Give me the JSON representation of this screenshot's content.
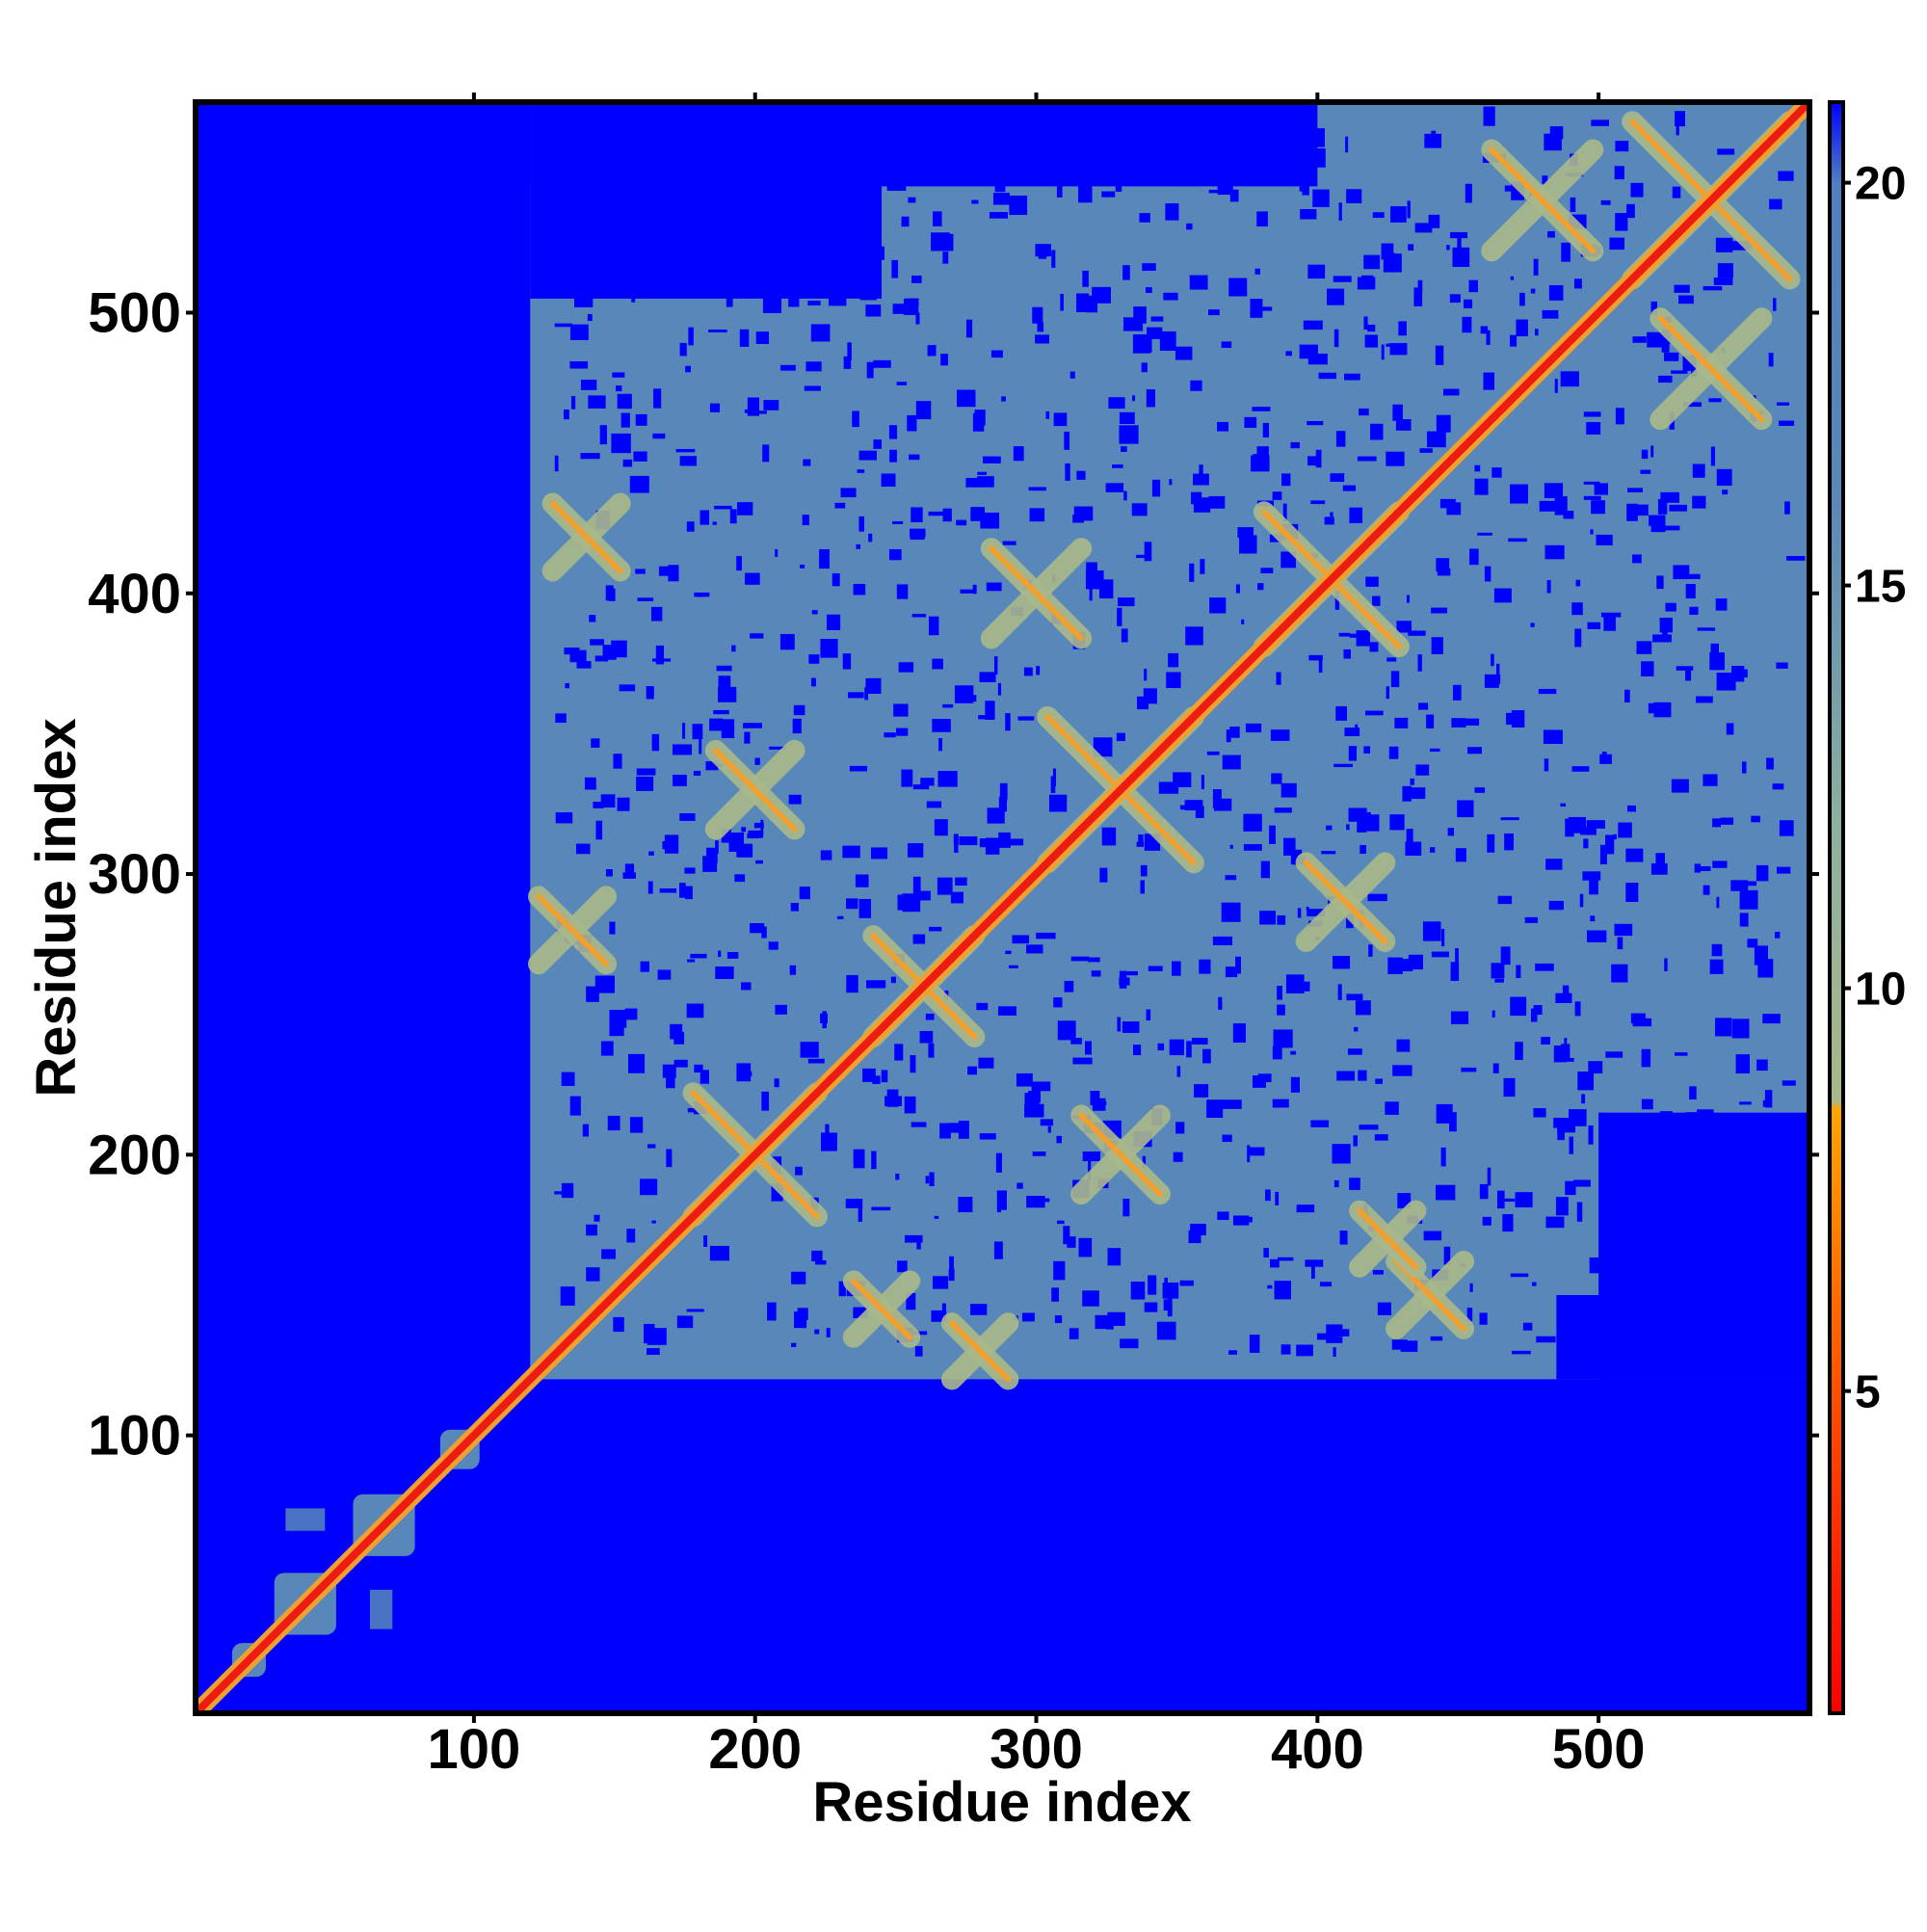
{
  "chart_data": {
    "type": "heatmap",
    "title": "",
    "xlabel": "Residue index",
    "ylabel": "Residue index",
    "xlim": [
      1,
      575
    ],
    "ylim": [
      1,
      575
    ],
    "x_ticks": [
      100,
      200,
      300,
      400,
      500
    ],
    "y_ticks": [
      100,
      200,
      300,
      400,
      500
    ],
    "value_range": [
      1,
      21
    ],
    "colorbar_ticks": [
      5,
      10,
      15,
      20
    ],
    "colors": {
      "background": "#0000ff",
      "region": "#5887b9",
      "contact_light": "#aab98a",
      "contact_mid": "#f0a030",
      "diagonal": "#ee1b10"
    },
    "colorbar_stops": [
      {
        "value": 1,
        "color": "#ff0000"
      },
      {
        "value": 5,
        "color": "#ff5000"
      },
      {
        "value": 8.5,
        "color": "#ffa500"
      },
      {
        "value": 8.6,
        "color": "#a8b88a"
      },
      {
        "value": 12,
        "color": "#8eb09e"
      },
      {
        "value": 16,
        "color": "#5b88b8"
      },
      {
        "value": 20,
        "color": "#4f7fc0"
      },
      {
        "value": 21,
        "color": "#0000ff"
      }
    ],
    "structured_region": {
      "residue_start": 120,
      "residue_end": 575
    },
    "region_block": {
      "x": [
        120,
        575
      ],
      "y": [
        120,
        575
      ]
    },
    "region_cuts": [
      {
        "x": [
          120,
          400
        ],
        "y": [
          545,
          575
        ]
      },
      {
        "x": [
          120,
          245
        ],
        "y": [
          505,
          575
        ]
      },
      {
        "x": [
          500,
          575
        ],
        "y": [
          120,
          215
        ]
      },
      {
        "x": [
          485,
          575
        ],
        "y": [
          120,
          150
        ]
      }
    ],
    "small_domains": [
      {
        "center": [
          20,
          20
        ],
        "size": 12
      },
      {
        "center": [
          40,
          40
        ],
        "size": 22
      },
      {
        "center": [
          68,
          68
        ],
        "size": 22
      },
      {
        "center": [
          95,
          95
        ],
        "size": 14
      }
    ],
    "off_diagonal_patches": [
      {
        "center": [
          40,
          70
        ],
        "size": [
          14,
          8
        ]
      },
      {
        "center": [
          67,
          38
        ],
        "size": [
          8,
          14
        ]
      }
    ],
    "contact_crosses": [
      {
        "center": [
          200,
          200
        ],
        "arm": 22
      },
      {
        "center": [
          330,
          330
        ],
        "arm": 26
      },
      {
        "center": [
          405,
          405
        ],
        "arm": 24
      },
      {
        "center": [
          540,
          540
        ],
        "arm": 28
      },
      {
        "center": [
          260,
          260
        ],
        "arm": 18
      },
      {
        "center": [
          200,
          330
        ],
        "arm": 14
      },
      {
        "center": [
          330,
          200
        ],
        "arm": 14
      },
      {
        "center": [
          300,
          400
        ],
        "arm": 16
      },
      {
        "center": [
          410,
          290
        ],
        "arm": 14
      },
      {
        "center": [
          140,
          420
        ],
        "arm": 12
      },
      {
        "center": [
          135,
          280
        ],
        "arm": 12
      },
      {
        "center": [
          280,
          130
        ],
        "arm": 10
      },
      {
        "center": [
          245,
          145
        ],
        "arm": 10
      },
      {
        "center": [
          440,
          150
        ],
        "arm": 12
      },
      {
        "center": [
          425,
          170
        ],
        "arm": 10
      },
      {
        "center": [
          540,
          480
        ],
        "arm": 18
      },
      {
        "center": [
          480,
          540
        ],
        "arm": 18
      }
    ]
  }
}
